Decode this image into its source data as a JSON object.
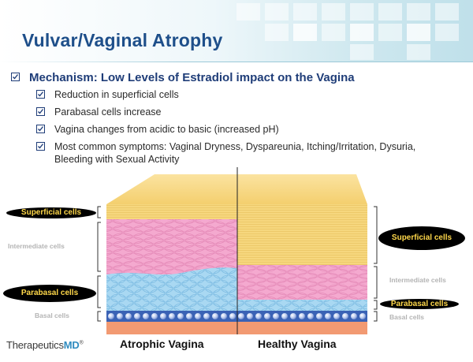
{
  "slide": {
    "title": "Vulvar/Vaginal Atrophy",
    "main_bullet": "Mechanism: Low Levels of Estradiol impact on the Vagina",
    "sub_bullets": [
      "Reduction in superficial cells",
      "Parabasal cells increase",
      "Vagina changes from acidic to basic (increased pH)",
      "Most common symptoms: Vaginal Dryness, Dyspareunia, Itching/Irritation, Dysuria,",
      "Bleeding with Sexual Activity"
    ],
    "bullet_icon": "checkbox-icon"
  },
  "diagram": {
    "left_labels": {
      "superficial": "Superficial cells",
      "intermediate": "Intermediate cells",
      "parabasal": "Parabasal cells",
      "basal": "Basal cells"
    },
    "right_labels": {
      "superficial": "Superficial cells",
      "intermediate": "Intermediate cells",
      "parabasal": "Parabasal cells",
      "basal": "Basal cells"
    },
    "captions": {
      "left": "Atrophic Vagina",
      "right": "Healthy Vagina"
    },
    "colors": {
      "superficial": "#f6d77e",
      "intermediate": "#f4a9cf",
      "parabasal": "#a9d8f2",
      "basal": "#3a62b5",
      "substrate": "#f29a72",
      "title": "#1e4f8a",
      "label_text": "#ffd84a"
    }
  },
  "branding": {
    "logo_main": "Therapeutics",
    "logo_suffix": "MD",
    "logo_mark": "®"
  }
}
